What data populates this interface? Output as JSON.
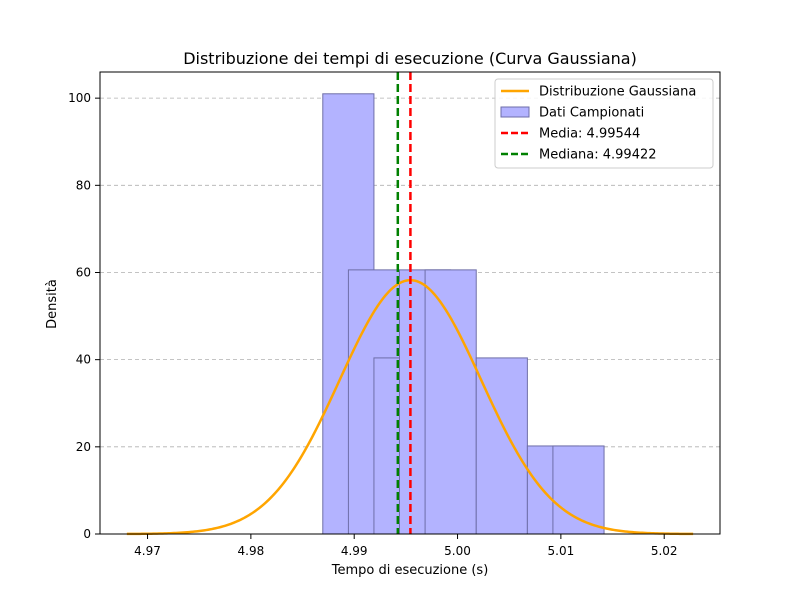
{
  "chart_data": {
    "type": "bar",
    "title": "Distribuzione dei tempi di esecuzione (Curva Gaussiana)",
    "xlabel": "Tempo di esecuzione (s)",
    "ylabel": "Densità",
    "xlim": [
      4.9654,
      5.0254
    ],
    "ylim": [
      0,
      106
    ],
    "xticks": [
      4.97,
      4.98,
      4.99,
      5.0,
      5.01,
      5.02
    ],
    "xtick_labels": [
      "4.97",
      "4.98",
      "4.99",
      "5.00",
      "5.01",
      "5.02"
    ],
    "yticks": [
      0,
      20,
      40,
      60,
      80,
      100
    ],
    "ytick_labels": [
      "0",
      "20",
      "40",
      "60",
      "80",
      "100"
    ],
    "grid": "y-dashed",
    "legend_position": "top-right",
    "histogram": {
      "name": "Dati Campionati",
      "color": "#b3b3ff",
      "edge_color": "#6e6ea8",
      "bin_width": 0.00495,
      "bins": [
        {
          "x0": 4.98696,
          "density": 101
        },
        {
          "x0": 4.98944,
          "density": 60.6
        },
        {
          "x0": 4.99191,
          "density": 40.4
        },
        {
          "x0": 4.99438,
          "density": 60.6
        },
        {
          "x0": 4.99686,
          "density": 60.6
        },
        {
          "x0": 4.99933,
          "density": 0
        },
        {
          "x0": 5.00181,
          "density": 40.4
        },
        {
          "x0": 5.00428,
          "density": 0
        },
        {
          "x0": 5.00676,
          "density": 20.2
        },
        {
          "x0": 5.00923,
          "density": 20.2
        }
      ]
    },
    "gaussian": {
      "name": "Distribuzione Gaussiana",
      "color": "#ffa500",
      "mean": 4.99544,
      "std": 0.00685,
      "x_range": [
        4.968,
        5.0228
      ]
    },
    "lines": [
      {
        "name": "Media: 4.99544",
        "x": 4.99544,
        "color": "#ff0000"
      },
      {
        "name": "Mediana: 4.99422",
        "x": 4.99422,
        "color": "#008000"
      }
    ],
    "legend": [
      {
        "label": "Distribuzione Gaussiana",
        "kind": "line",
        "color": "#ffa500"
      },
      {
        "label": "Dati Campionati",
        "kind": "patch",
        "color": "#b3b3ff"
      },
      {
        "label": "Media: 4.99544",
        "kind": "dashed",
        "color": "#ff0000"
      },
      {
        "label": "Mediana: 4.99422",
        "kind": "dashed",
        "color": "#008000"
      }
    ]
  }
}
